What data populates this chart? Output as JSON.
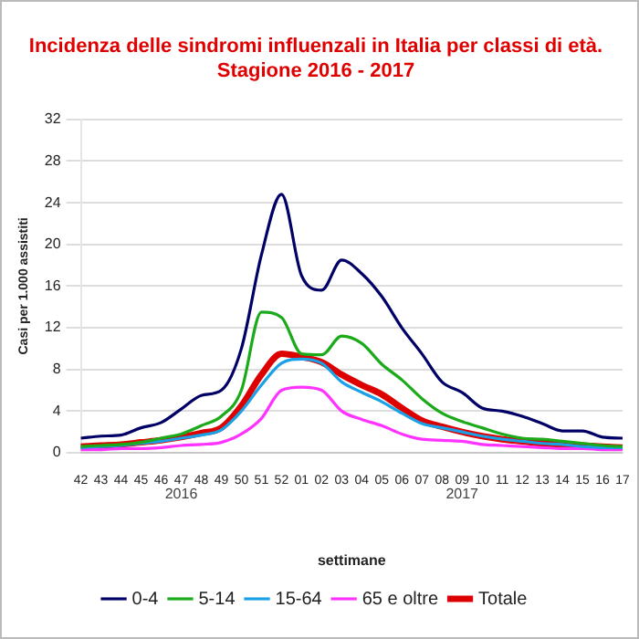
{
  "chart_data": {
    "type": "line",
    "title": [
      "Incidenza delle sindromi influenzali in Italia per classi di età.",
      "Stagione 2016 - 2017"
    ],
    "xlabel": "settimane",
    "ylabel": "Casi per 1.000 assistiti",
    "categories": [
      "42",
      "43",
      "44",
      "45",
      "46",
      "47",
      "48",
      "49",
      "50",
      "51",
      "52",
      "01",
      "02",
      "03",
      "04",
      "05",
      "06",
      "07",
      "08",
      "09",
      "10",
      "11",
      "12",
      "13",
      "14",
      "15",
      "16",
      "17"
    ],
    "series": [
      {
        "name": "0-4",
        "color": "#000066",
        "values": [
          1.4,
          1.6,
          1.7,
          2.4,
          2.9,
          4.2,
          5.5,
          6.0,
          10,
          19,
          24.8,
          17,
          15.6,
          18.5,
          17.2,
          15,
          12,
          9.5,
          6.8,
          5.8,
          4.3,
          4.0,
          3.5,
          2.8,
          2.1,
          2.1,
          1.5,
          1.4
        ]
      },
      {
        "name": "5-14",
        "color": "#1aaa1a",
        "values": [
          0.6,
          0.7,
          0.8,
          1.0,
          1.4,
          1.8,
          2.6,
          3.5,
          6,
          13.5,
          13,
          9.5,
          9.4,
          11.2,
          10.5,
          8.5,
          7,
          5.2,
          3.8,
          3.0,
          2.4,
          1.8,
          1.4,
          1.3,
          1.1,
          0.9,
          0.7,
          0.6
        ]
      },
      {
        "name": "15-64",
        "color": "#1aa0e6",
        "values": [
          0.5,
          0.6,
          0.7,
          0.9,
          1.1,
          1.4,
          1.7,
          2.2,
          4,
          6.5,
          8.6,
          9.0,
          8.6,
          6.8,
          5.8,
          4.9,
          3.8,
          2.8,
          2.4,
          2.0,
          1.6,
          1.3,
          1.1,
          0.9,
          0.8,
          0.6,
          0.5,
          0.5
        ]
      },
      {
        "name": "65 e oltre",
        "color": "#ff33ff",
        "values": [
          0.3,
          0.3,
          0.4,
          0.4,
          0.5,
          0.7,
          0.8,
          1.0,
          1.8,
          3.3,
          6.0,
          6.3,
          6.0,
          4.0,
          3.2,
          2.6,
          1.8,
          1.3,
          1.2,
          1.1,
          0.8,
          0.7,
          0.6,
          0.5,
          0.4,
          0.4,
          0.3,
          0.3
        ]
      },
      {
        "name": "Totale",
        "color": "#dd0000",
        "values": [
          0.6,
          0.7,
          0.8,
          1.0,
          1.2,
          1.5,
          1.9,
          2.4,
          4.5,
          7.5,
          9.5,
          9.2,
          8.7,
          7.5,
          6.5,
          5.6,
          4.3,
          3.1,
          2.5,
          2.0,
          1.6,
          1.3,
          1.1,
          0.9,
          0.8,
          0.7,
          0.6,
          0.5
        ]
      }
    ],
    "ylim": [
      0,
      32
    ],
    "yticks": [
      0,
      4,
      8,
      12,
      16,
      20,
      24,
      28,
      32
    ],
    "grid": "y",
    "legend": "bottom",
    "marker": "none",
    "line_style": "solid",
    "annotations": [
      "2016",
      "2017"
    ]
  }
}
